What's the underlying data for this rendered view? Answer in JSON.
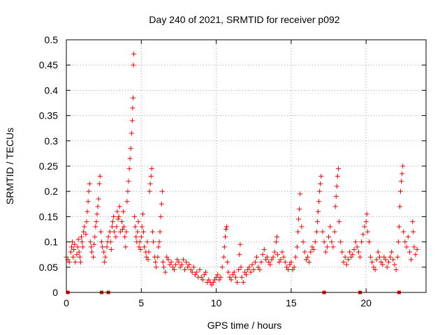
{
  "chart_data": {
    "type": "scatter",
    "title": "Day 240 of 2021, SRMTID for receiver p092",
    "xlabel": "GPS time / hours",
    "ylabel": "SRMTID / TECUs",
    "xlim": [
      0,
      24
    ],
    "ylim": [
      0,
      0.5
    ],
    "xticks": [
      0,
      5,
      10,
      15,
      20
    ],
    "xtick_labels": [
      "0",
      "5",
      "10",
      "15",
      "20"
    ],
    "yticks": [
      0,
      0.05,
      0.1,
      0.15,
      0.2,
      0.25,
      0.3,
      0.35,
      0.4,
      0.45,
      0.5
    ],
    "ytick_labels": [
      "0",
      "0.05",
      "0.1",
      "0.15",
      "0.2",
      "0.25",
      "0.3",
      "0.35",
      "0.4",
      "0.45",
      "0.5"
    ],
    "grid": true,
    "marker": "+",
    "color": "#ff0000",
    "series": [
      {
        "name": "SRMTID",
        "points": [
          [
            0.0,
            0.07
          ],
          [
            0.1,
            0.065
          ],
          [
            0.2,
            0.06
          ],
          [
            0.3,
            0.08
          ],
          [
            0.35,
            0.09
          ],
          [
            0.4,
            0.1
          ],
          [
            0.45,
            0.07
          ],
          [
            0.5,
            0.085
          ],
          [
            0.55,
            0.095
          ],
          [
            0.6,
            0.06
          ],
          [
            0.7,
            0.075
          ],
          [
            0.75,
            0.09
          ],
          [
            0.8,
            0.105
          ],
          [
            0.85,
            0.08
          ],
          [
            0.9,
            0.07
          ],
          [
            0.95,
            0.06
          ],
          [
            1.0,
            0.11
          ],
          [
            1.05,
            0.1
          ],
          [
            1.1,
            0.09
          ],
          [
            1.15,
            0.12
          ],
          [
            1.2,
            0.13
          ],
          [
            1.3,
            0.115
          ],
          [
            1.35,
            0.14
          ],
          [
            1.4,
            0.16
          ],
          [
            1.45,
            0.18
          ],
          [
            1.5,
            0.2
          ],
          [
            1.55,
            0.215
          ],
          [
            1.6,
            0.1
          ],
          [
            1.65,
            0.09
          ],
          [
            1.7,
            0.08
          ],
          [
            1.8,
            0.07
          ],
          [
            1.85,
            0.095
          ],
          [
            1.9,
            0.11
          ],
          [
            1.95,
            0.13
          ],
          [
            2.0,
            0.14
          ],
          [
            2.05,
            0.155
          ],
          [
            2.1,
            0.17
          ],
          [
            2.15,
            0.185
          ],
          [
            2.2,
            0.215
          ],
          [
            2.25,
            0.23
          ],
          [
            2.3,
            0.12
          ],
          [
            2.35,
            0.1
          ],
          [
            2.4,
            0.09
          ],
          [
            2.5,
            0.08
          ],
          [
            2.55,
            0.06
          ],
          [
            2.6,
            0.07
          ],
          [
            2.7,
            0.09
          ],
          [
            2.75,
            0.1
          ],
          [
            2.8,
            0.11
          ],
          [
            2.9,
            0.12
          ],
          [
            2.95,
            0.1
          ],
          [
            3.0,
            0.085
          ],
          [
            3.05,
            0.13
          ],
          [
            3.1,
            0.14
          ],
          [
            3.15,
            0.15
          ],
          [
            3.2,
            0.12
          ],
          [
            3.3,
            0.11
          ],
          [
            3.35,
            0.13
          ],
          [
            3.4,
            0.16
          ],
          [
            3.45,
            0.145
          ],
          [
            3.5,
            0.15
          ],
          [
            3.55,
            0.17
          ],
          [
            3.6,
            0.12
          ],
          [
            3.7,
            0.14
          ],
          [
            3.75,
            0.125
          ],
          [
            3.8,
            0.16
          ],
          [
            3.85,
            0.13
          ],
          [
            3.9,
            0.11
          ],
          [
            3.95,
            0.09
          ],
          [
            4.0,
            0.12
          ],
          [
            4.05,
            0.18
          ],
          [
            4.1,
            0.2
          ],
          [
            4.15,
            0.22
          ],
          [
            4.2,
            0.245
          ],
          [
            4.25,
            0.265
          ],
          [
            4.3,
            0.285
          ],
          [
            4.35,
            0.315
          ],
          [
            4.4,
            0.34
          ],
          [
            4.42,
            0.365
          ],
          [
            4.45,
            0.385
          ],
          [
            4.47,
            0.45
          ],
          [
            4.5,
            0.472
          ],
          [
            4.55,
            0.15
          ],
          [
            4.6,
            0.13
          ],
          [
            4.65,
            0.11
          ],
          [
            4.7,
            0.1
          ],
          [
            4.75,
            0.12
          ],
          [
            4.8,
            0.14
          ],
          [
            4.85,
            0.09
          ],
          [
            4.9,
            0.1
          ],
          [
            4.95,
            0.085
          ],
          [
            5.0,
            0.11
          ],
          [
            5.05,
            0.13
          ],
          [
            5.1,
            0.155
          ],
          [
            5.15,
            0.12
          ],
          [
            5.2,
            0.09
          ],
          [
            5.3,
            0.08
          ],
          [
            5.35,
            0.07
          ],
          [
            5.4,
            0.1
          ],
          [
            5.45,
            0.065
          ],
          [
            5.5,
            0.08
          ],
          [
            5.55,
            0.2
          ],
          [
            5.6,
            0.215
          ],
          [
            5.65,
            0.23
          ],
          [
            5.7,
            0.245
          ],
          [
            5.75,
            0.12
          ],
          [
            5.8,
            0.1
          ],
          [
            5.9,
            0.07
          ],
          [
            5.95,
            0.06
          ],
          [
            6.0,
            0.05
          ],
          [
            6.1,
            0.07
          ],
          [
            6.15,
            0.09
          ],
          [
            6.2,
            0.1
          ],
          [
            6.25,
            0.12
          ],
          [
            6.3,
            0.15
          ],
          [
            6.35,
            0.175
          ],
          [
            6.4,
            0.2
          ],
          [
            6.45,
            0.06
          ],
          [
            6.5,
            0.05
          ],
          [
            6.6,
            0.04
          ],
          [
            6.7,
            0.07
          ],
          [
            6.8,
            0.065
          ],
          [
            6.9,
            0.055
          ],
          [
            7.0,
            0.06
          ],
          [
            7.1,
            0.05
          ],
          [
            7.2,
            0.045
          ],
          [
            7.3,
            0.055
          ],
          [
            7.4,
            0.065
          ],
          [
            7.5,
            0.06
          ],
          [
            7.6,
            0.05
          ],
          [
            7.7,
            0.055
          ],
          [
            7.8,
            0.065
          ],
          [
            7.9,
            0.045
          ],
          [
            8.0,
            0.06
          ],
          [
            8.1,
            0.05
          ],
          [
            8.2,
            0.055
          ],
          [
            8.3,
            0.045
          ],
          [
            8.4,
            0.04
          ],
          [
            8.5,
            0.05
          ],
          [
            8.6,
            0.035
          ],
          [
            8.7,
            0.04
          ],
          [
            8.8,
            0.03
          ],
          [
            8.9,
            0.045
          ],
          [
            9.0,
            0.03
          ],
          [
            9.1,
            0.025
          ],
          [
            9.2,
            0.035
          ],
          [
            9.3,
            0.04
          ],
          [
            9.4,
            0.02
          ],
          [
            9.5,
            0.025
          ],
          [
            9.6,
            0.02
          ],
          [
            9.7,
            0.015
          ],
          [
            9.8,
            0.02
          ],
          [
            9.9,
            0.025
          ],
          [
            10.0,
            0.03
          ],
          [
            10.1,
            0.035
          ],
          [
            10.2,
            0.025
          ],
          [
            10.3,
            0.03
          ],
          [
            10.4,
            0.05
          ],
          [
            10.5,
            0.07
          ],
          [
            10.55,
            0.09
          ],
          [
            10.6,
            0.11
          ],
          [
            10.65,
            0.125
          ],
          [
            10.7,
            0.13
          ],
          [
            10.75,
            0.06
          ],
          [
            10.8,
            0.04
          ],
          [
            10.9,
            0.03
          ],
          [
            11.0,
            0.025
          ],
          [
            11.1,
            0.035
          ],
          [
            11.2,
            0.04
          ],
          [
            11.3,
            0.03
          ],
          [
            11.4,
            0.02
          ],
          [
            11.5,
            0.045
          ],
          [
            11.55,
            0.075
          ],
          [
            11.6,
            0.095
          ],
          [
            11.65,
            0.05
          ],
          [
            11.7,
            0.03
          ],
          [
            11.8,
            0.02
          ],
          [
            11.9,
            0.04
          ],
          [
            12.0,
            0.035
          ],
          [
            12.1,
            0.045
          ],
          [
            12.2,
            0.05
          ],
          [
            12.3,
            0.04
          ],
          [
            12.4,
            0.055
          ],
          [
            12.5,
            0.045
          ],
          [
            12.6,
            0.06
          ],
          [
            12.7,
            0.07
          ],
          [
            12.8,
            0.05
          ],
          [
            12.9,
            0.045
          ],
          [
            13.0,
            0.06
          ],
          [
            13.1,
            0.075
          ],
          [
            13.2,
            0.085
          ],
          [
            13.3,
            0.065
          ],
          [
            13.4,
            0.07
          ],
          [
            13.5,
            0.06
          ],
          [
            13.6,
            0.055
          ],
          [
            13.7,
            0.065
          ],
          [
            13.8,
            0.07
          ],
          [
            13.9,
            0.08
          ],
          [
            14.0,
            0.1
          ],
          [
            14.05,
            0.11
          ],
          [
            14.1,
            0.075
          ],
          [
            14.2,
            0.06
          ],
          [
            14.3,
            0.065
          ],
          [
            14.4,
            0.08
          ],
          [
            14.5,
            0.07
          ],
          [
            14.6,
            0.06
          ],
          [
            14.7,
            0.05
          ],
          [
            14.8,
            0.045
          ],
          [
            14.9,
            0.055
          ],
          [
            15.0,
            0.06
          ],
          [
            15.1,
            0.045
          ],
          [
            15.2,
            0.05
          ],
          [
            15.3,
            0.07
          ],
          [
            15.4,
            0.09
          ],
          [
            15.45,
            0.12
          ],
          [
            15.5,
            0.145
          ],
          [
            15.55,
            0.165
          ],
          [
            15.6,
            0.195
          ],
          [
            15.7,
            0.13
          ],
          [
            15.8,
            0.1
          ],
          [
            15.9,
            0.08
          ],
          [
            16.0,
            0.065
          ],
          [
            16.1,
            0.07
          ],
          [
            16.2,
            0.06
          ],
          [
            16.3,
            0.08
          ],
          [
            16.4,
            0.09
          ],
          [
            16.5,
            0.085
          ],
          [
            16.6,
            0.1
          ],
          [
            16.7,
            0.12
          ],
          [
            16.75,
            0.14
          ],
          [
            16.8,
            0.16
          ],
          [
            16.85,
            0.18
          ],
          [
            16.9,
            0.2
          ],
          [
            16.95,
            0.215
          ],
          [
            17.0,
            0.23
          ],
          [
            17.1,
            0.12
          ],
          [
            17.2,
            0.1
          ],
          [
            17.3,
            0.08
          ],
          [
            17.4,
            0.09
          ],
          [
            17.5,
            0.11
          ],
          [
            17.6,
            0.13
          ],
          [
            17.7,
            0.1
          ],
          [
            17.8,
            0.09
          ],
          [
            17.9,
            0.12
          ],
          [
            17.95,
            0.17
          ],
          [
            18.0,
            0.19
          ],
          [
            18.05,
            0.21
          ],
          [
            18.1,
            0.23
          ],
          [
            18.15,
            0.245
          ],
          [
            18.2,
            0.14
          ],
          [
            18.3,
            0.1
          ],
          [
            18.4,
            0.08
          ],
          [
            18.5,
            0.06
          ],
          [
            18.6,
            0.07
          ],
          [
            18.7,
            0.055
          ],
          [
            18.8,
            0.065
          ],
          [
            18.9,
            0.08
          ],
          [
            19.0,
            0.07
          ],
          [
            19.1,
            0.075
          ],
          [
            19.2,
            0.085
          ],
          [
            19.3,
            0.1
          ],
          [
            19.4,
            0.09
          ],
          [
            19.5,
            0.08
          ],
          [
            19.6,
            0.07
          ],
          [
            19.7,
            0.1
          ],
          [
            19.8,
            0.115
          ],
          [
            19.9,
            0.13
          ],
          [
            20.0,
            0.14
          ],
          [
            20.05,
            0.155
          ],
          [
            20.1,
            0.12
          ],
          [
            20.2,
            0.1
          ],
          [
            20.3,
            0.07
          ],
          [
            20.4,
            0.06
          ],
          [
            20.5,
            0.05
          ],
          [
            20.6,
            0.045
          ],
          [
            20.7,
            0.065
          ],
          [
            20.8,
            0.08
          ],
          [
            20.9,
            0.07
          ],
          [
            21.0,
            0.06
          ],
          [
            21.1,
            0.055
          ],
          [
            21.2,
            0.07
          ],
          [
            21.3,
            0.065
          ],
          [
            21.4,
            0.05
          ],
          [
            21.5,
            0.06
          ],
          [
            21.6,
            0.07
          ],
          [
            21.7,
            0.08
          ],
          [
            21.8,
            0.065
          ],
          [
            21.9,
            0.055
          ],
          [
            22.0,
            0.045
          ],
          [
            22.1,
            0.07
          ],
          [
            22.15,
            0.1
          ],
          [
            22.2,
            0.13
          ],
          [
            22.25,
            0.17
          ],
          [
            22.3,
            0.2
          ],
          [
            22.35,
            0.22
          ],
          [
            22.4,
            0.235
          ],
          [
            22.45,
            0.25
          ],
          [
            22.5,
            0.12
          ],
          [
            22.6,
            0.1
          ],
          [
            22.7,
            0.09
          ],
          [
            22.8,
            0.11
          ],
          [
            22.9,
            0.08
          ],
          [
            23.0,
            0.065
          ],
          [
            23.1,
            0.14
          ],
          [
            23.15,
            0.12
          ],
          [
            23.2,
            0.09
          ],
          [
            23.3,
            0.075
          ],
          [
            23.4,
            0.085
          ]
        ]
      }
    ],
    "gap_markers": [
      0.1,
      2.35,
      2.8,
      17.2,
      19.6,
      22.2
    ]
  }
}
